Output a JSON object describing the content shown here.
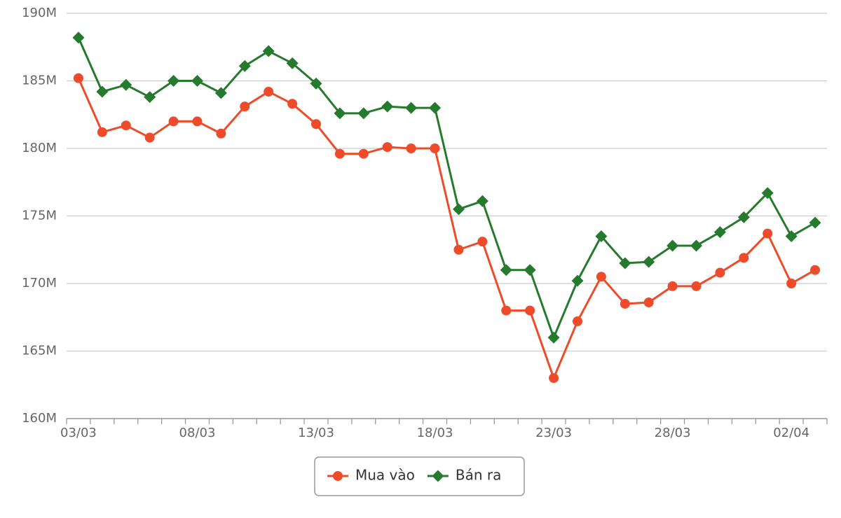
{
  "chart_data": {
    "type": "line",
    "categories": [
      "03/03",
      null,
      null,
      null,
      null,
      "08/03",
      null,
      null,
      null,
      null,
      "13/03",
      null,
      null,
      null,
      null,
      "18/03",
      null,
      null,
      null,
      null,
      "23/03",
      null,
      null,
      null,
      null,
      "28/03",
      null,
      null,
      null,
      null,
      "02/04",
      null
    ],
    "series": [
      {
        "name": "Mua vào",
        "color": "#ee4b2b",
        "marker": "circle",
        "values": [
          185.2,
          181.2,
          181.7,
          180.8,
          182.0,
          182.0,
          181.1,
          183.1,
          184.2,
          183.3,
          181.8,
          179.6,
          179.6,
          180.1,
          180.0,
          180.0,
          172.5,
          173.1,
          168.0,
          168.0,
          163.0,
          167.2,
          170.5,
          168.5,
          168.6,
          169.8,
          169.8,
          170.8,
          171.9,
          173.7,
          170.0,
          171.0
        ]
      },
      {
        "name": "Bán ra",
        "color": "#267a2e",
        "marker": "diamond",
        "values": [
          188.2,
          184.2,
          184.7,
          183.8,
          185.0,
          185.0,
          184.1,
          186.1,
          187.2,
          186.3,
          184.8,
          182.6,
          182.6,
          183.1,
          183.0,
          183.0,
          175.5,
          176.1,
          171.0,
          171.0,
          166.0,
          170.2,
          173.5,
          171.5,
          171.6,
          172.8,
          172.8,
          173.8,
          174.9,
          176.7,
          173.5,
          174.5
        ]
      }
    ],
    "ylim": [
      160,
      190
    ],
    "yticks": [
      {
        "value": 160,
        "label": "160M"
      },
      {
        "value": 165,
        "label": "165M"
      },
      {
        "value": 170,
        "label": "170M"
      },
      {
        "value": 175,
        "label": "175M"
      },
      {
        "value": 180,
        "label": "180M"
      },
      {
        "value": 185,
        "label": "185M"
      },
      {
        "value": 190,
        "label": "190M"
      }
    ],
    "grid": true,
    "legend": "bottom"
  }
}
